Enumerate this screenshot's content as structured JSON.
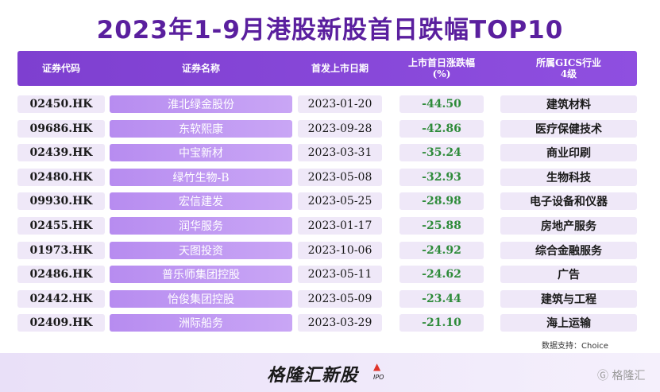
{
  "title": "2023年1-9月港股新股首日跌幅TOP10",
  "header": {
    "code": "证券代码",
    "name": "证券名称",
    "date": "首发上市日期",
    "change_line1": "上市首日涨跌幅",
    "change_line2": "(%)",
    "industry_line1": "所属GICS行业",
    "industry_line2": "4级"
  },
  "chart_data": {
    "type": "table",
    "columns": [
      "证券代码",
      "证券名称",
      "首发上市日期",
      "上市首日涨跌幅(%)",
      "所属GICS行业4级"
    ],
    "rows": [
      {
        "code": "02450.HK",
        "name": "淮北绿金股份",
        "date": "2023-01-20",
        "change": "-44.50",
        "industry": "建筑材料"
      },
      {
        "code": "09686.HK",
        "name": "东软熙康",
        "date": "2023-09-28",
        "change": "-42.86",
        "industry": "医疗保健技术"
      },
      {
        "code": "02439.HK",
        "name": "中宝新材",
        "date": "2023-03-31",
        "change": "-35.24",
        "industry": "商业印刷"
      },
      {
        "code": "02480.HK",
        "name": "绿竹生物-B",
        "date": "2023-05-08",
        "change": "-32.93",
        "industry": "生物科技"
      },
      {
        "code": "09930.HK",
        "name": "宏信建发",
        "date": "2023-05-25",
        "change": "-28.98",
        "industry": "电子设备和仪器"
      },
      {
        "code": "02455.HK",
        "name": "润华服务",
        "date": "2023-01-17",
        "change": "-25.88",
        "industry": "房地产服务"
      },
      {
        "code": "01973.HK",
        "name": "天图投资",
        "date": "2023-10-06",
        "change": "-24.92",
        "industry": "综合金融服务"
      },
      {
        "code": "02486.HK",
        "name": "普乐师集团控股",
        "date": "2023-05-11",
        "change": "-24.62",
        "industry": "广告"
      },
      {
        "code": "02442.HK",
        "name": "怡俊集团控股",
        "date": "2023-05-09",
        "change": "-23.44",
        "industry": "建筑与工程"
      },
      {
        "code": "02409.HK",
        "name": "洲际船务",
        "date": "2023-03-29",
        "change": "-21.10",
        "industry": "海上运输"
      }
    ]
  },
  "colors": {
    "title": "#5a1f9e",
    "header_bg": "#8047d4",
    "name_cell_bg": "#bb92f0",
    "change_text": "#2e8b3a"
  },
  "source": "数据支持：Choice",
  "footer": {
    "logo": "格隆汇新股",
    "logo_suffix": "IPO",
    "watermark": "格隆汇"
  }
}
